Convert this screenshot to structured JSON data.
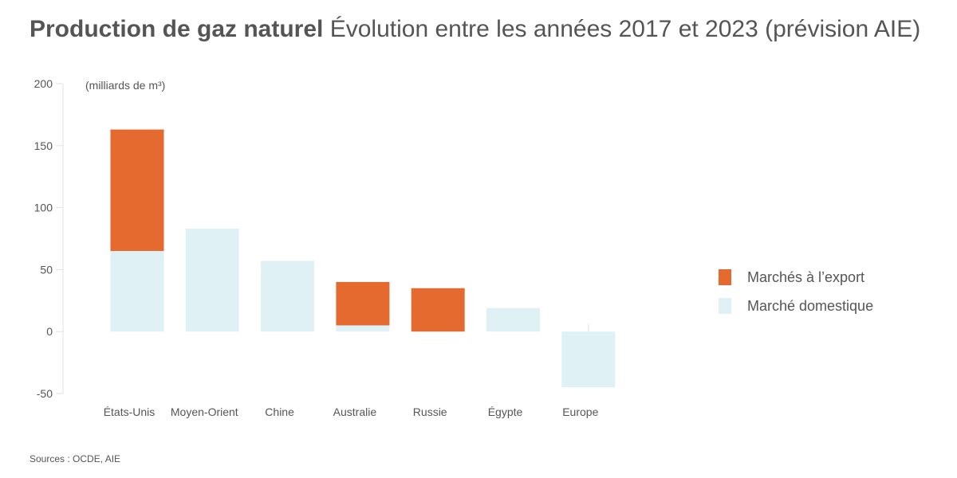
{
  "title": {
    "main": "Production de gaz naturel",
    "subtitle": "Évolution entre les années 2017 et 2023 (prévision AIE)"
  },
  "source": "Sources : OCDE, AIE",
  "legend": {
    "export_label": "Marchés à l’export",
    "domestic_label": "Marché domestique"
  },
  "colors": {
    "export": "#e56a30",
    "domestic": "#dff1f4",
    "text": "#555555",
    "axis": "#e2e2e2"
  },
  "chart_data": {
    "type": "bar",
    "stacked": true,
    "unit_label": "(milliards de m³)",
    "categories": [
      "États-Unis",
      "Moyen-Orient",
      "Chine",
      "Australie",
      "Russie",
      "Égypte",
      "Europe"
    ],
    "series": [
      {
        "name": "Marché domestique",
        "values": [
          65,
          83,
          57,
          5,
          0,
          19,
          -45
        ]
      },
      {
        "name": "Marchés à l’export",
        "values": [
          98,
          0,
          0,
          35,
          35,
          0,
          0
        ]
      }
    ],
    "ylim": [
      -50,
      200
    ],
    "yticks": [
      200,
      150,
      100,
      50,
      0,
      -50
    ],
    "legend_position": "right"
  }
}
